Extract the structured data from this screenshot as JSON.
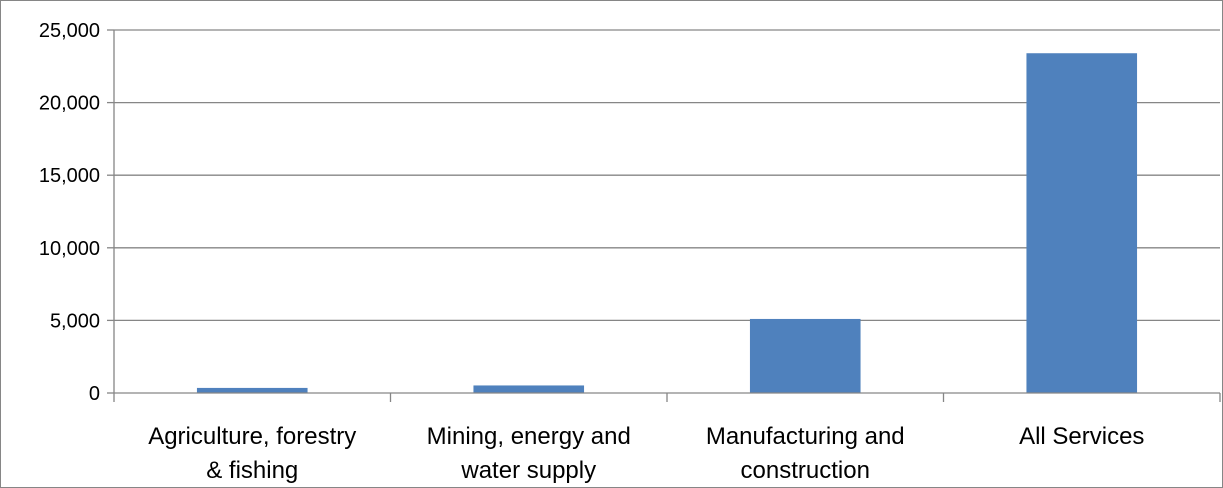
{
  "chart_data": {
    "type": "bar",
    "title": "",
    "xlabel": "",
    "ylabel": "",
    "categories": [
      [
        "Agriculture, forestry",
        "& fishing"
      ],
      [
        "Mining, energy and",
        "water supply"
      ],
      [
        "Manufacturing and",
        "construction"
      ],
      [
        "All Services"
      ]
    ],
    "series": [
      {
        "values": [
          350,
          520,
          5100,
          23400
        ]
      }
    ],
    "ylim": [
      0,
      25000
    ],
    "yticks": [
      0,
      5000,
      10000,
      15000,
      20000,
      25000
    ],
    "ytick_labels": [
      "0",
      "5,000",
      "10,000",
      "15,000",
      "20,000",
      "25,000"
    ],
    "grid": true,
    "legend": "none",
    "colors": {
      "bar": "#4F81BD",
      "grid": "#868686",
      "axis": "#868686",
      "text": "#000000"
    }
  }
}
